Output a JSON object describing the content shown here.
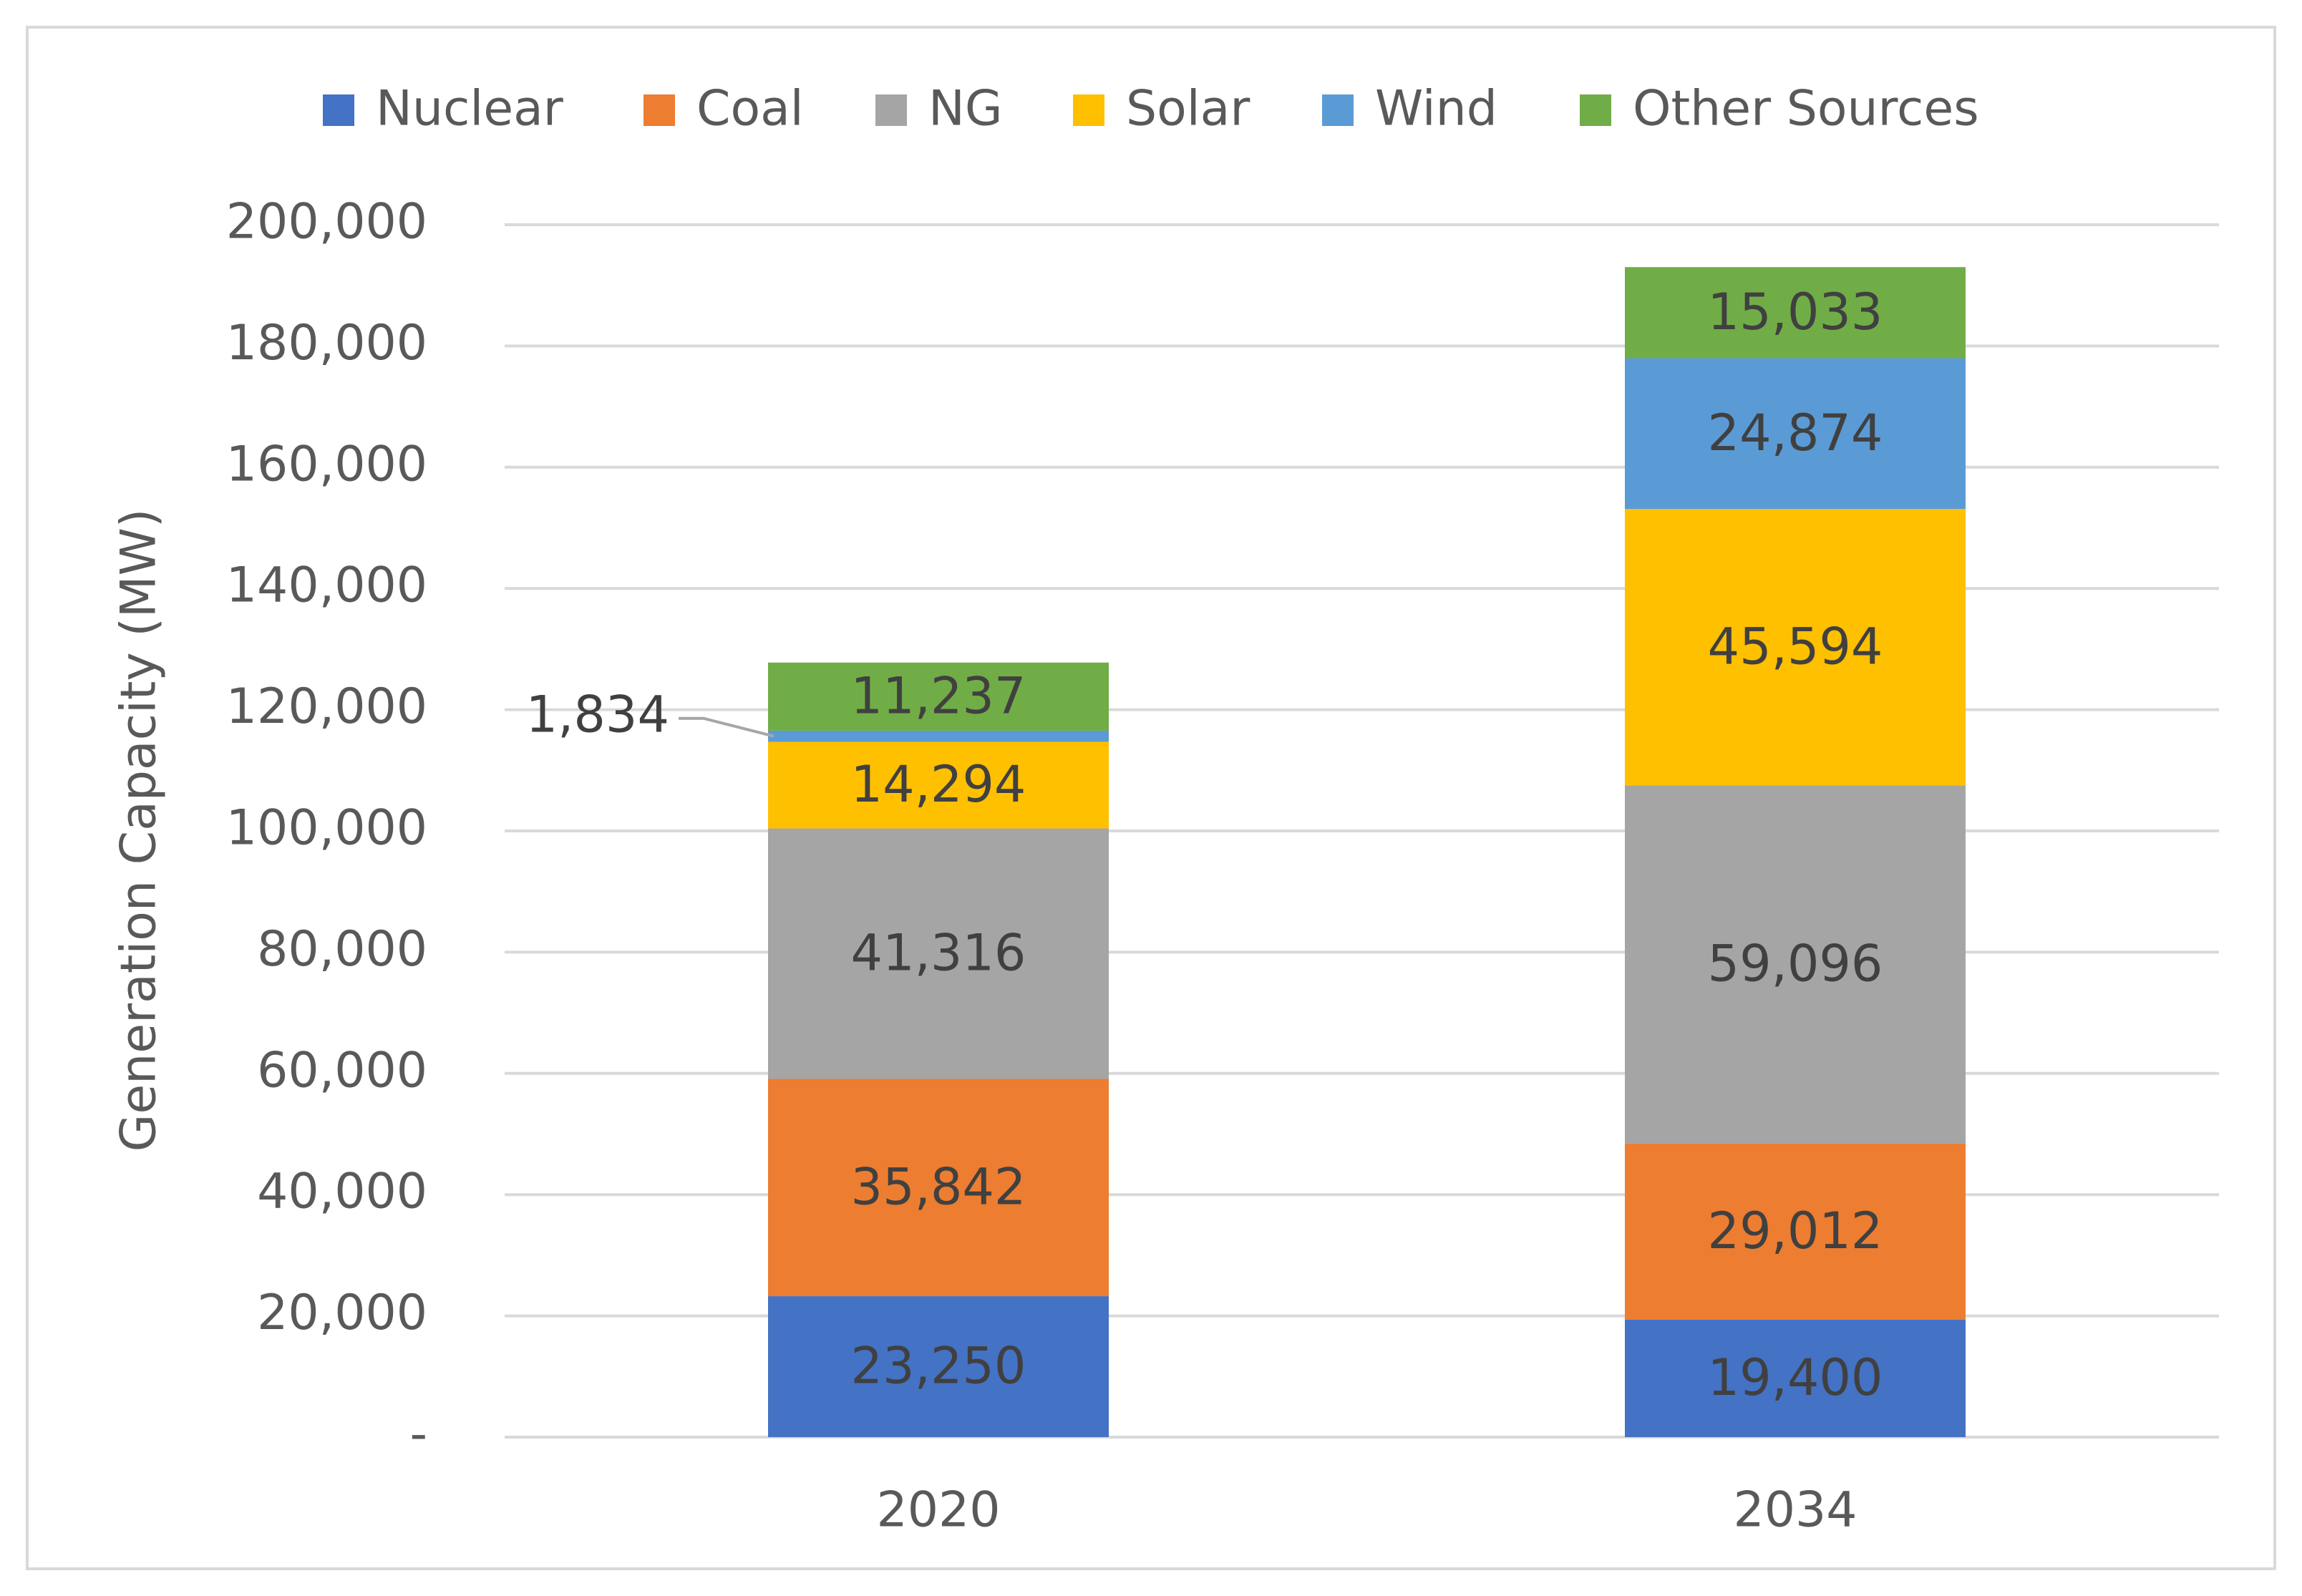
{
  "chart_data": {
    "type": "bar",
    "stacked": true,
    "title": "",
    "xlabel": "",
    "ylabel": "Generation Capacity (MW)",
    "ylim": [
      0,
      200000
    ],
    "y_ticks": [
      0,
      20000,
      40000,
      60000,
      80000,
      100000,
      120000,
      140000,
      160000,
      180000,
      200000
    ],
    "y_tick_labels": [
      "-",
      "20,000",
      "40,000",
      "60,000",
      "80,000",
      "100,000",
      "120,000",
      "140,000",
      "160,000",
      "180,000",
      "200,000"
    ],
    "grid": true,
    "legend_position": "top",
    "categories": [
      "2020",
      "2034"
    ],
    "series": [
      {
        "name": "Nuclear",
        "color": "#4472c4",
        "values": [
          23250,
          19400
        ],
        "labels": [
          "23,250",
          "19,400"
        ]
      },
      {
        "name": "Coal",
        "color": "#ed7d31",
        "values": [
          35842,
          29012
        ],
        "labels": [
          "35,842",
          "29,012"
        ]
      },
      {
        "name": "NG",
        "color": "#a5a5a5",
        "values": [
          41316,
          59096
        ],
        "labels": [
          "41,316",
          "59,096"
        ]
      },
      {
        "name": "Solar",
        "color": "#ffc000",
        "values": [
          14294,
          45594
        ],
        "labels": [
          "14,294",
          "45,594"
        ]
      },
      {
        "name": "Wind",
        "color": "#5b9bd5",
        "values": [
          1834,
          24874
        ],
        "labels": [
          "1,834",
          "24,874"
        ],
        "callout": [
          true,
          false
        ]
      },
      {
        "name": "Other Sources",
        "color": "#70ad47",
        "values": [
          11237,
          15033
        ],
        "labels": [
          "11,237",
          "15,033"
        ]
      }
    ]
  }
}
